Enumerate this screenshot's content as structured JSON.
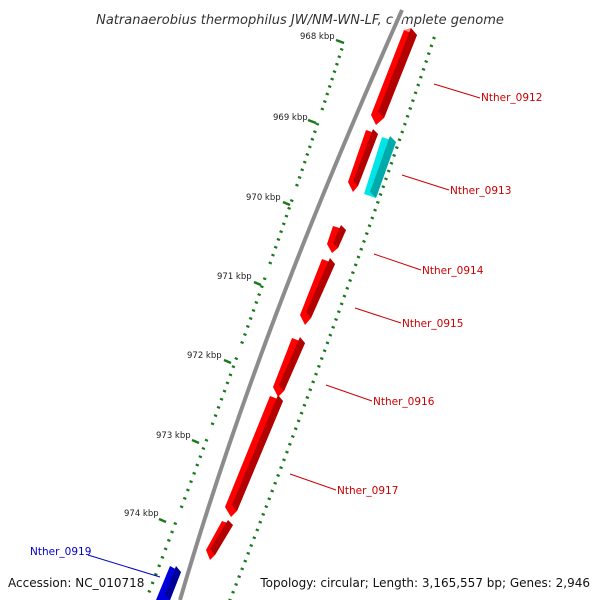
{
  "title": "Natranaerobius thermophilus JW/NM-WN-LF, complete genome",
  "accession": "Accession: NC_010718",
  "topology": "Topology: circular; Length: 3,165,557 bp; Genes: 2,946",
  "ticks": [
    "968 kbp",
    "969 kbp",
    "970 kbp",
    "971 kbp",
    "972 kbp",
    "973 kbp",
    "974 kbp"
  ],
  "genes": [
    {
      "name": "Nther_0912",
      "color": "#ff0000"
    },
    {
      "name": "Nther_0913",
      "color": "#00e5e5"
    },
    {
      "name": "Nther_0914",
      "color": "#ff0000"
    },
    {
      "name": "Nther_0915",
      "color": "#ff0000"
    },
    {
      "name": "Nther_0916",
      "color": "#ff0000"
    },
    {
      "name": "Nther_0917",
      "color": "#ff0000"
    },
    {
      "name": "Nther_0919",
      "color": "#0000dd"
    }
  ],
  "colors": {
    "forward_gene": "#ff0000",
    "reverse_gene": "#00e5e5",
    "other_gene": "#0000dd",
    "backbone": "#888888",
    "tick": "#1a7a1a",
    "label_red": "#cc0000",
    "label_blue": "#0000cc"
  }
}
